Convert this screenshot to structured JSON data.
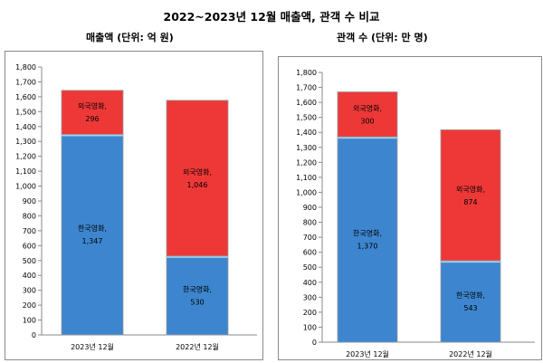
{
  "title": "2022~2023년 12월 매출액, 관객 수 비교",
  "chart_data": [
    {
      "type": "bar",
      "stacked": true,
      "title": "매출액 (단위: 억 원)",
      "categories": [
        "2023년 12월",
        "2022년 12월"
      ],
      "series": [
        {
          "name": "한국영화",
          "values": [
            1347,
            530
          ],
          "color": "#3d86cf"
        },
        {
          "name": "외국영화",
          "values": [
            296,
            1046
          ],
          "color": "#ee3838"
        }
      ],
      "ylim": [
        0,
        1800
      ],
      "ytick_step": 100,
      "yticks": [
        "0",
        "100",
        "200",
        "300",
        "400",
        "500",
        "600",
        "700",
        "800",
        "900",
        "1,000",
        "1,100",
        "1,200",
        "1,300",
        "1,400",
        "1,500",
        "1,600",
        "1,700",
        "1,800"
      ],
      "value_labels": [
        [
          "1,347",
          "530"
        ],
        [
          "296",
          "1,046"
        ]
      ],
      "series_labels": [
        "한국영화,",
        "외국영화,"
      ],
      "grid": false
    },
    {
      "type": "bar",
      "stacked": true,
      "title": "관객 수 (단위: 만 명)",
      "categories": [
        "2023년 12월",
        "2022년 12월"
      ],
      "series": [
        {
          "name": "한국영화",
          "values": [
            1370,
            543
          ],
          "color": "#3d86cf"
        },
        {
          "name": "외국영화",
          "values": [
            300,
            874
          ],
          "color": "#ee3838"
        }
      ],
      "ylim": [
        0,
        1800
      ],
      "ytick_step": 100,
      "yticks": [
        "0",
        "100",
        "200",
        "300",
        "400",
        "500",
        "600",
        "700",
        "800",
        "900",
        "1,000",
        "1,100",
        "1,200",
        "1,300",
        "1,400",
        "1,500",
        "1,600",
        "1,700",
        "1,800"
      ],
      "value_labels": [
        [
          "1,370",
          "543"
        ],
        [
          "300",
          "874"
        ]
      ],
      "series_labels": [
        "한국영화,",
        "외국영화,"
      ],
      "grid": false
    }
  ]
}
